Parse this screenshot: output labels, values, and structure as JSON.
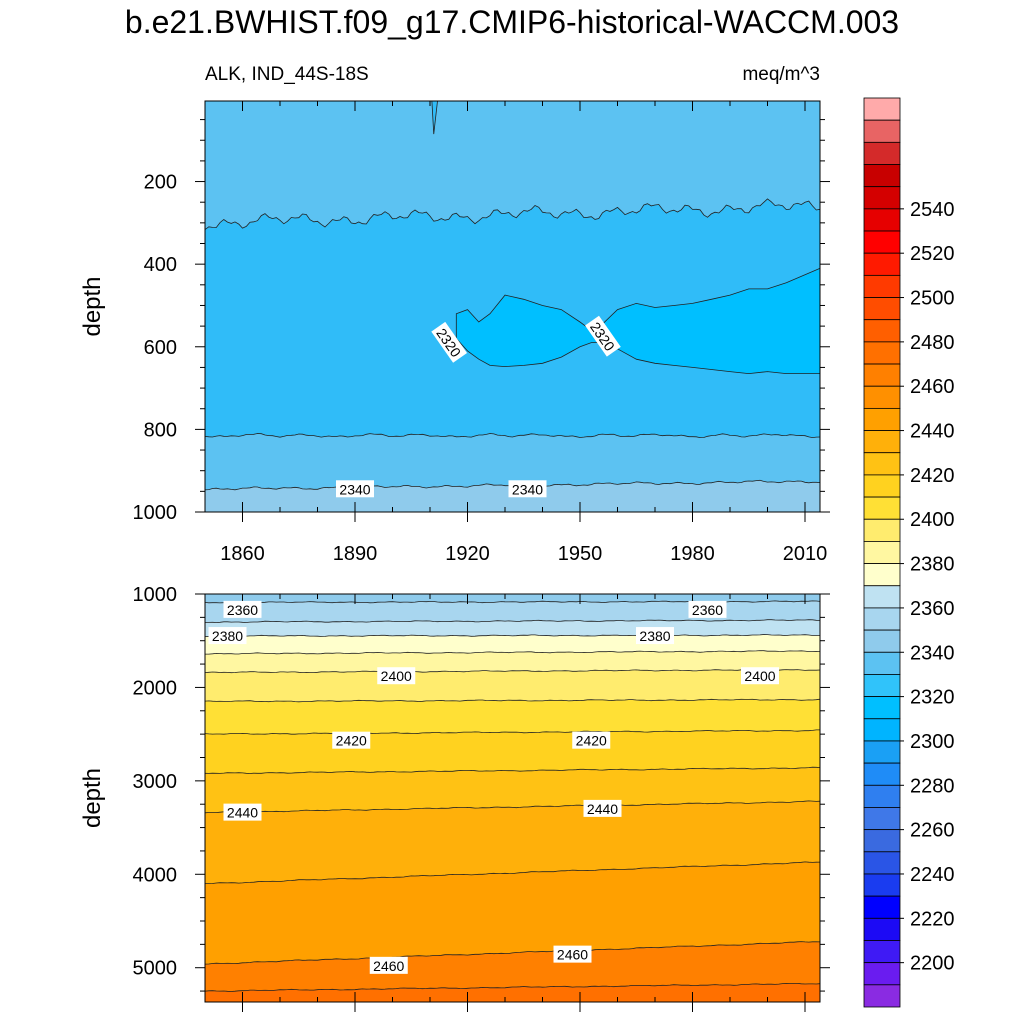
{
  "chart_data": {
    "type": "contour",
    "title": "b.e21.BWHIST.f09_g17.CMIP6-historical-WACCM.003",
    "left_string": "ALK, IND_44S-18S",
    "right_string": "meq/m^3",
    "x_range": [
      1850,
      2014
    ],
    "x_ticks": [
      1860,
      1890,
      1920,
      1950,
      1980,
      2010
    ],
    "x_tick_labels": [
      "1860",
      "1890",
      "1920",
      "1950",
      "1980",
      "2010"
    ],
    "levels": [
      2190,
      2200,
      2210,
      2220,
      2230,
      2240,
      2250,
      2260,
      2270,
      2280,
      2290,
      2300,
      2310,
      2320,
      2330,
      2340,
      2350,
      2360,
      2370,
      2380,
      2390,
      2400,
      2410,
      2420,
      2430,
      2440,
      2450,
      2460,
      2470,
      2480,
      2490,
      2500,
      2510,
      2520,
      2530,
      2540,
      2550,
      2560
    ],
    "colors": [
      "#8a2be2",
      "#6a1cf0",
      "#3f1af5",
      "#1c0af5",
      "#0000ff",
      "#1a3cf0",
      "#2a55e6",
      "#3a6ae0",
      "#3f78e8",
      "#2f7ff0",
      "#1f8cf7",
      "#1aa0f5",
      "#00b4ff",
      "#00bfff",
      "#30c3fa",
      "#5cc2f2",
      "#8fcbec",
      "#a8d6ef",
      "#bfe2f2",
      "#ffffcc",
      "#fff7a1",
      "#ffec6e",
      "#ffe035",
      "#ffd21f",
      "#ffc214",
      "#ffb00a",
      "#ffa000",
      "#ff9000",
      "#ff8000",
      "#ff7000",
      "#ff5f00",
      "#ff4d00",
      "#ff3a00",
      "#ff1a00",
      "#ff0000",
      "#e60000",
      "#d40000",
      "#c80000",
      "#d42a2a",
      "#e86464",
      "#ffaaaa"
    ],
    "colorbar_labels": [
      "2200",
      "2220",
      "2240",
      "2260",
      "2280",
      "2300",
      "2320",
      "2340",
      "2360",
      "2380",
      "2400",
      "2420",
      "2440",
      "2460",
      "2480",
      "2500",
      "2520",
      "2540"
    ],
    "panels": [
      {
        "name": "upper",
        "ylabel": "depth",
        "y_range": [
          1000,
          5
        ],
        "y_ticks": [
          200,
          400,
          600,
          800,
          1000
        ],
        "y_tick_labels": [
          "200",
          "400",
          "600",
          "800",
          "1000"
        ],
        "bands": [
          {
            "level": 2330,
            "color": "#5cc2f2"
          },
          {
            "level": 2320,
            "color": "#30bcf8"
          },
          {
            "level": 2310,
            "color": "#00bfff"
          },
          {
            "level": 2320,
            "color": "#30bcf8"
          },
          {
            "level": 2330,
            "color": "#5cc2f2"
          },
          {
            "level": 2340,
            "color": "#8fcbec"
          }
        ],
        "contour_labels": [
          {
            "text": "2320",
            "year": 1915,
            "depth": 590,
            "rotation": 55
          },
          {
            "text": "2320",
            "year": 1956,
            "depth": 575,
            "rotation": 55
          },
          {
            "text": "2340",
            "year": 1890,
            "depth": 945,
            "rotation": 0
          },
          {
            "text": "2340",
            "year": 1936,
            "depth": 945,
            "rotation": 0
          }
        ]
      },
      {
        "name": "lower",
        "ylabel": "depth",
        "y_range": [
          5367,
          1000
        ],
        "y_ticks": [
          1000,
          2000,
          3000,
          4000,
          5000
        ],
        "y_tick_labels": [
          "1000",
          "2000",
          "3000",
          "4000",
          "5000"
        ],
        "contour_labels": [
          {
            "text": "2360",
            "year": 1860,
            "depth": 1170
          },
          {
            "text": "2360",
            "year": 1984,
            "depth": 1170
          },
          {
            "text": "2380",
            "year": 1856,
            "depth": 1450
          },
          {
            "text": "2380",
            "year": 1970,
            "depth": 1450
          },
          {
            "text": "2400",
            "year": 1901,
            "depth": 1880
          },
          {
            "text": "2400",
            "year": 1998,
            "depth": 1880
          },
          {
            "text": "2420",
            "year": 1889,
            "depth": 2570
          },
          {
            "text": "2420",
            "year": 1953,
            "depth": 2570
          },
          {
            "text": "2440",
            "year": 1860,
            "depth": 3340
          },
          {
            "text": "2440",
            "year": 1956,
            "depth": 3300
          },
          {
            "text": "2460",
            "year": 1899,
            "depth": 4980
          },
          {
            "text": "2460",
            "year": 1948,
            "depth": 4860
          }
        ]
      }
    ]
  }
}
